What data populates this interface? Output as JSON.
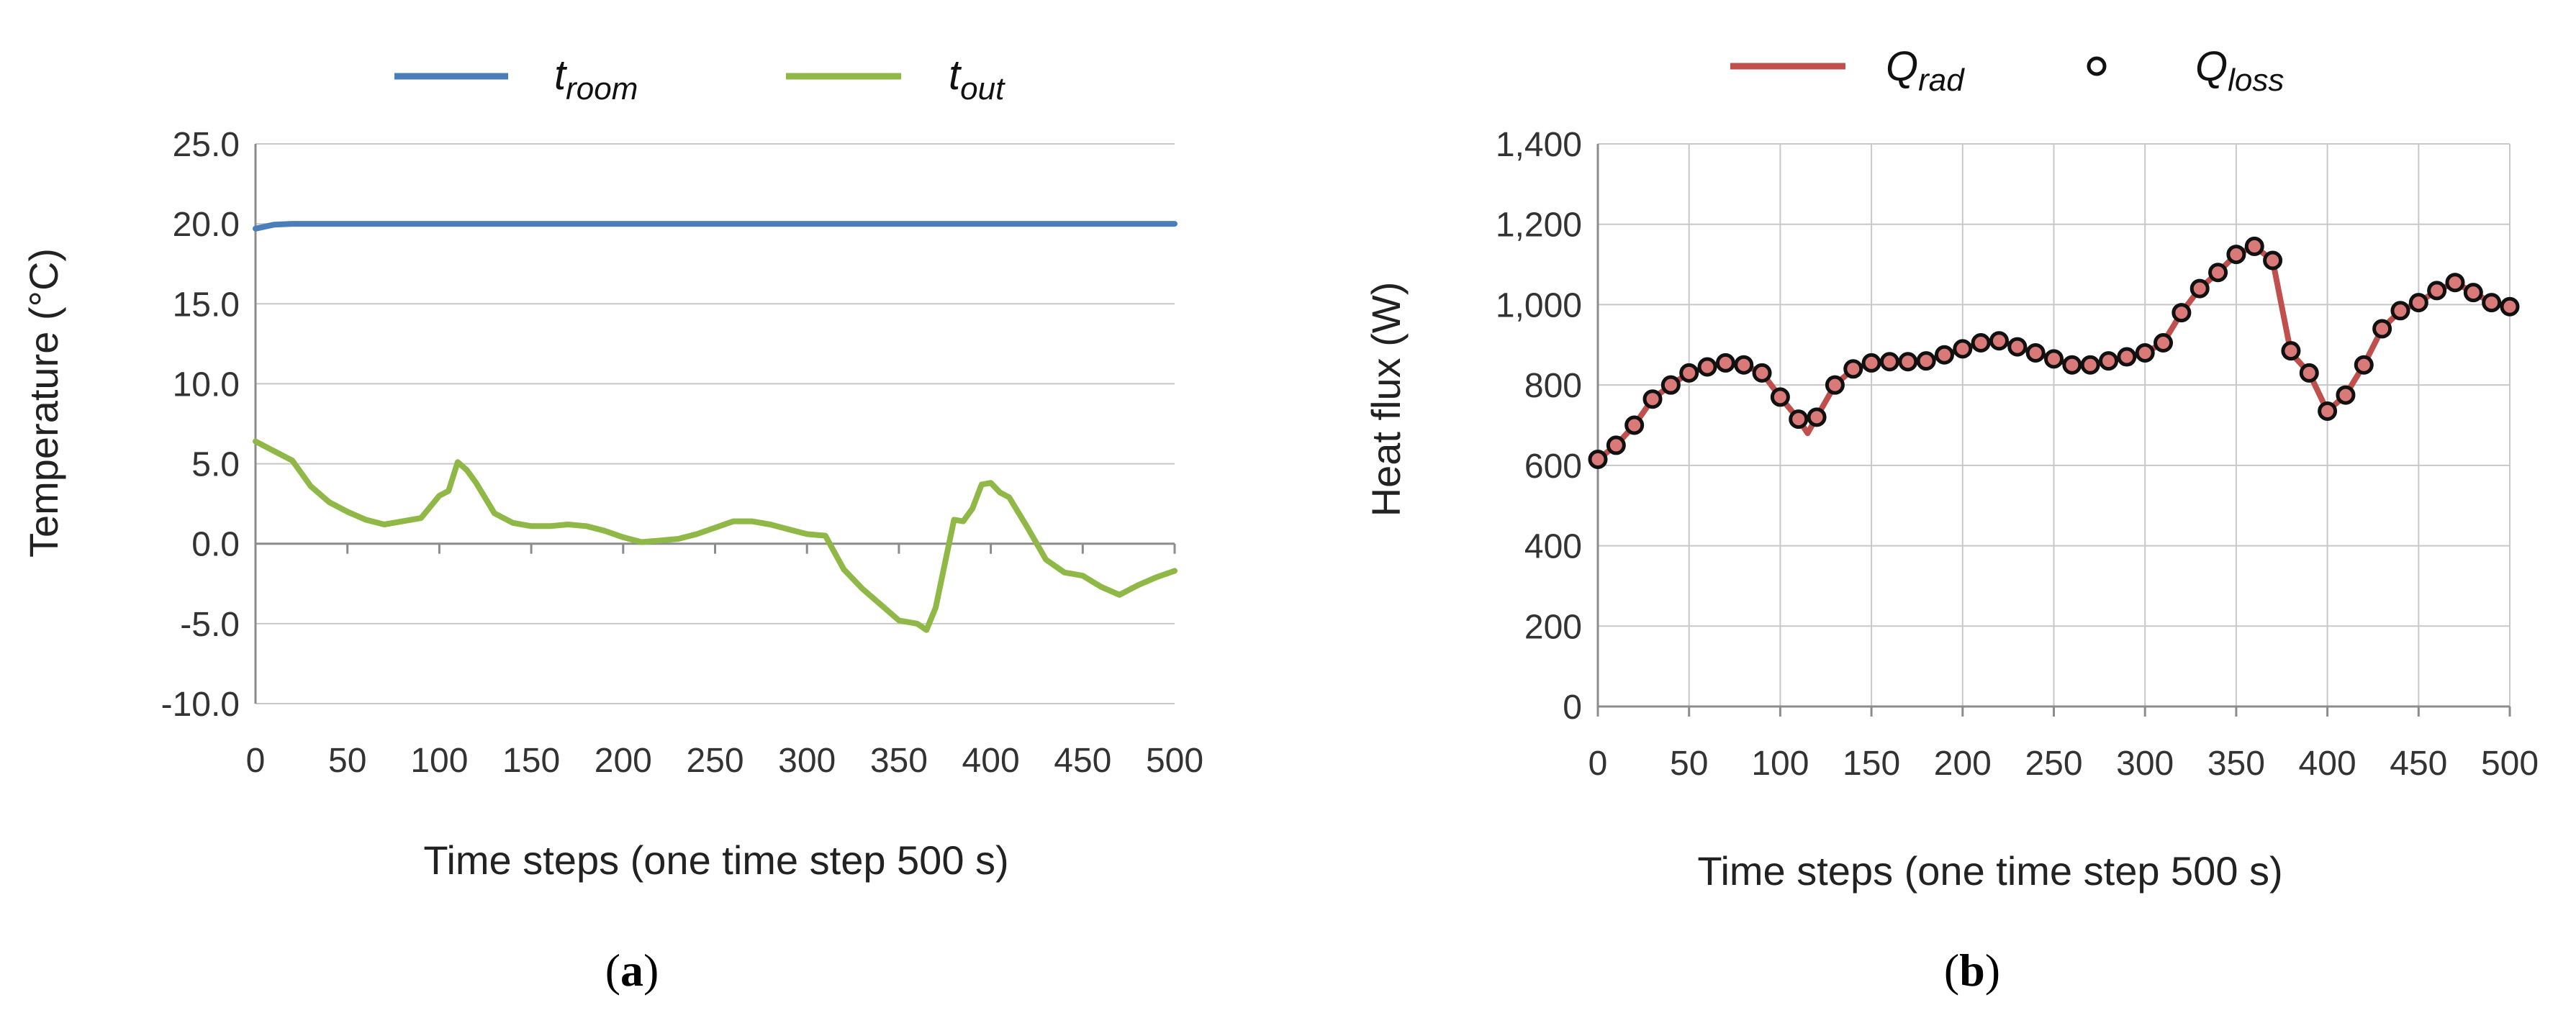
{
  "chart_data": [
    {
      "type": "line",
      "panel_label": {
        "open": "(",
        "letter": "a",
        "close": ")"
      },
      "xlabel": "Time steps (one time step 500 s)",
      "ylabel": "Temperature (°C)",
      "xlim": [
        0,
        500
      ],
      "ylim": [
        -10,
        25
      ],
      "xticks": [
        0,
        50,
        100,
        150,
        200,
        250,
        300,
        350,
        400,
        450,
        500
      ],
      "yticks": [
        -10,
        -5,
        0,
        5,
        10,
        15,
        20,
        25
      ],
      "ytick_labels": [
        "-10.0",
        "-5.0",
        "0.0",
        "5.0",
        "10.0",
        "15.0",
        "20.0",
        "25.0"
      ],
      "grid": "horizontal",
      "legend_position": "top",
      "series": [
        {
          "name": "t",
          "name_sub": "room",
          "color": "#4a7ebb",
          "style": "line",
          "x": [
            0,
            10,
            20,
            500
          ],
          "y": [
            19.7,
            19.95,
            20.0,
            20.0
          ]
        },
        {
          "name": "t",
          "name_sub": "out",
          "color": "#8fb847",
          "style": "line",
          "x": [
            0,
            10,
            20,
            30,
            40,
            50,
            60,
            70,
            80,
            90,
            100,
            105,
            110,
            115,
            120,
            130,
            140,
            150,
            160,
            170,
            180,
            190,
            200,
            210,
            220,
            230,
            240,
            250,
            260,
            270,
            280,
            290,
            300,
            310,
            320,
            330,
            340,
            350,
            360,
            365,
            370,
            380,
            385,
            390,
            395,
            400,
            405,
            410,
            420,
            430,
            440,
            450,
            460,
            470,
            480,
            490,
            500
          ],
          "y": [
            6.4,
            5.8,
            5.2,
            3.6,
            2.6,
            2.0,
            1.5,
            1.2,
            1.4,
            1.6,
            3.0,
            3.3,
            5.1,
            4.6,
            3.8,
            1.9,
            1.3,
            1.1,
            1.1,
            1.2,
            1.1,
            0.8,
            0.4,
            0.1,
            0.2,
            0.3,
            0.6,
            1.0,
            1.4,
            1.4,
            1.2,
            0.9,
            0.6,
            0.5,
            -1.6,
            -2.8,
            -3.8,
            -4.8,
            -5.0,
            -5.4,
            -4.0,
            1.5,
            1.4,
            2.2,
            3.7,
            3.8,
            3.2,
            2.9,
            1.0,
            -1.0,
            -1.8,
            -2.0,
            -2.7,
            -3.2,
            -2.6,
            -2.1,
            -1.7
          ]
        }
      ]
    },
    {
      "type": "line",
      "panel_label": {
        "open": "(",
        "letter": "b",
        "close": ")"
      },
      "xlabel": "Time steps (one time step 500 s)",
      "ylabel": "Heat flux (W)",
      "xlim": [
        0,
        500
      ],
      "ylim": [
        0,
        1400
      ],
      "xticks": [
        0,
        50,
        100,
        150,
        200,
        250,
        300,
        350,
        400,
        450,
        500
      ],
      "yticks": [
        0,
        200,
        400,
        600,
        800,
        1000,
        1200,
        1400
      ],
      "ytick_labels": [
        "0",
        "200",
        "400",
        "600",
        "800",
        "1,000",
        "1,200",
        "1,400"
      ],
      "grid": "both",
      "legend_position": "top",
      "series": [
        {
          "name": "Q",
          "name_sub": "rad",
          "color": "#c0504d",
          "style": "line",
          "x": [
            0,
            10,
            20,
            30,
            40,
            50,
            60,
            70,
            80,
            90,
            100,
            110,
            115,
            120,
            130,
            140,
            150,
            160,
            170,
            180,
            190,
            200,
            210,
            220,
            230,
            240,
            250,
            260,
            270,
            280,
            290,
            300,
            310,
            320,
            330,
            340,
            350,
            360,
            370,
            380,
            390,
            400,
            410,
            420,
            430,
            440,
            450,
            460,
            470,
            480,
            490,
            500
          ],
          "y": [
            615,
            650,
            700,
            765,
            800,
            830,
            845,
            855,
            850,
            830,
            770,
            715,
            680,
            720,
            800,
            840,
            855,
            858,
            858,
            860,
            875,
            890,
            905,
            910,
            895,
            880,
            865,
            850,
            850,
            860,
            870,
            880,
            905,
            980,
            1040,
            1080,
            1125,
            1145,
            1110,
            880,
            830,
            735,
            775,
            850,
            940,
            985,
            1005,
            1035,
            1055,
            1030,
            1005,
            995
          ]
        },
        {
          "name": "Q",
          "name_sub": "loss",
          "color": "#111111",
          "fill": "#d97a78",
          "style": "markers",
          "x": [
            0,
            10,
            20,
            30,
            40,
            50,
            60,
            70,
            80,
            90,
            100,
            110,
            120,
            130,
            140,
            150,
            160,
            170,
            180,
            190,
            200,
            210,
            220,
            230,
            240,
            250,
            260,
            270,
            280,
            290,
            300,
            310,
            320,
            330,
            340,
            350,
            360,
            370,
            380,
            390,
            400,
            410,
            420,
            430,
            440,
            450,
            460,
            470,
            480,
            490,
            500
          ],
          "y": [
            615,
            650,
            700,
            765,
            800,
            830,
            845,
            855,
            850,
            830,
            770,
            715,
            720,
            800,
            840,
            855,
            858,
            858,
            860,
            875,
            890,
            905,
            910,
            895,
            880,
            865,
            850,
            850,
            860,
            870,
            880,
            905,
            980,
            1040,
            1080,
            1125,
            1145,
            1110,
            885,
            830,
            735,
            775,
            850,
            940,
            985,
            1005,
            1035,
            1055,
            1030,
            1005,
            995
          ]
        }
      ]
    }
  ]
}
